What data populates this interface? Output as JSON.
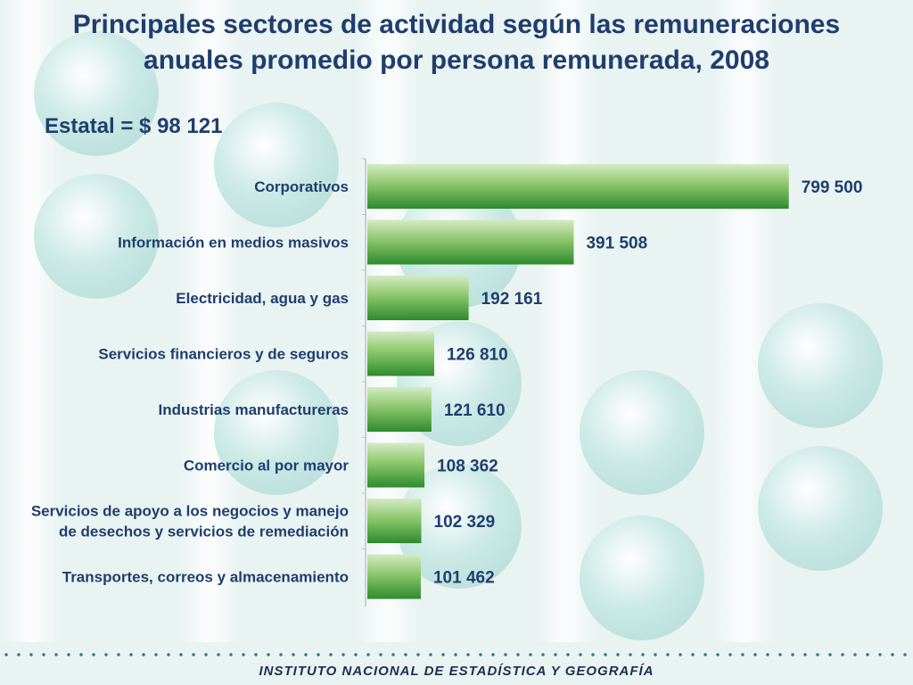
{
  "title": {
    "line1": "Principales sectores de actividad según las remuneraciones",
    "line2": "anuales promedio por persona remunerada, 2008"
  },
  "estatal_label": "Estatal = $ 98 121",
  "footer": {
    "institution": "INSTITUTO NACIONAL  DE ESTADÍSTICA Y GEOGRAFÍA"
  },
  "colors": {
    "title": "#1f3e6e",
    "bar_dark": "#2e8b2e",
    "bar_light": "#d4ebc4",
    "background": "#e9f3f2"
  },
  "chart_data": {
    "type": "bar",
    "orientation": "horizontal",
    "title": "",
    "xlabel": "",
    "ylabel": "",
    "xlim": [
      0,
      800000
    ],
    "grid": false,
    "categories": [
      [
        "Corporativos"
      ],
      [
        "Información en medios masivos"
      ],
      [
        "Electricidad, agua y gas"
      ],
      [
        "Servicios financieros y de seguros"
      ],
      [
        "Industrias manufactureras"
      ],
      [
        "Comercio al por mayor"
      ],
      [
        "Servicios de apoyo a los negocios y manejo",
        "de desechos y servicios de remediación"
      ],
      [
        "Transportes, correos y almacenamiento"
      ]
    ],
    "values": [
      799500,
      391508,
      192161,
      126810,
      121610,
      108362,
      102329,
      101462
    ],
    "value_labels": [
      "799 500",
      "391 508",
      "192 161",
      "126 810",
      "121 610",
      "108 362",
      "102 329",
      "101 462"
    ]
  }
}
